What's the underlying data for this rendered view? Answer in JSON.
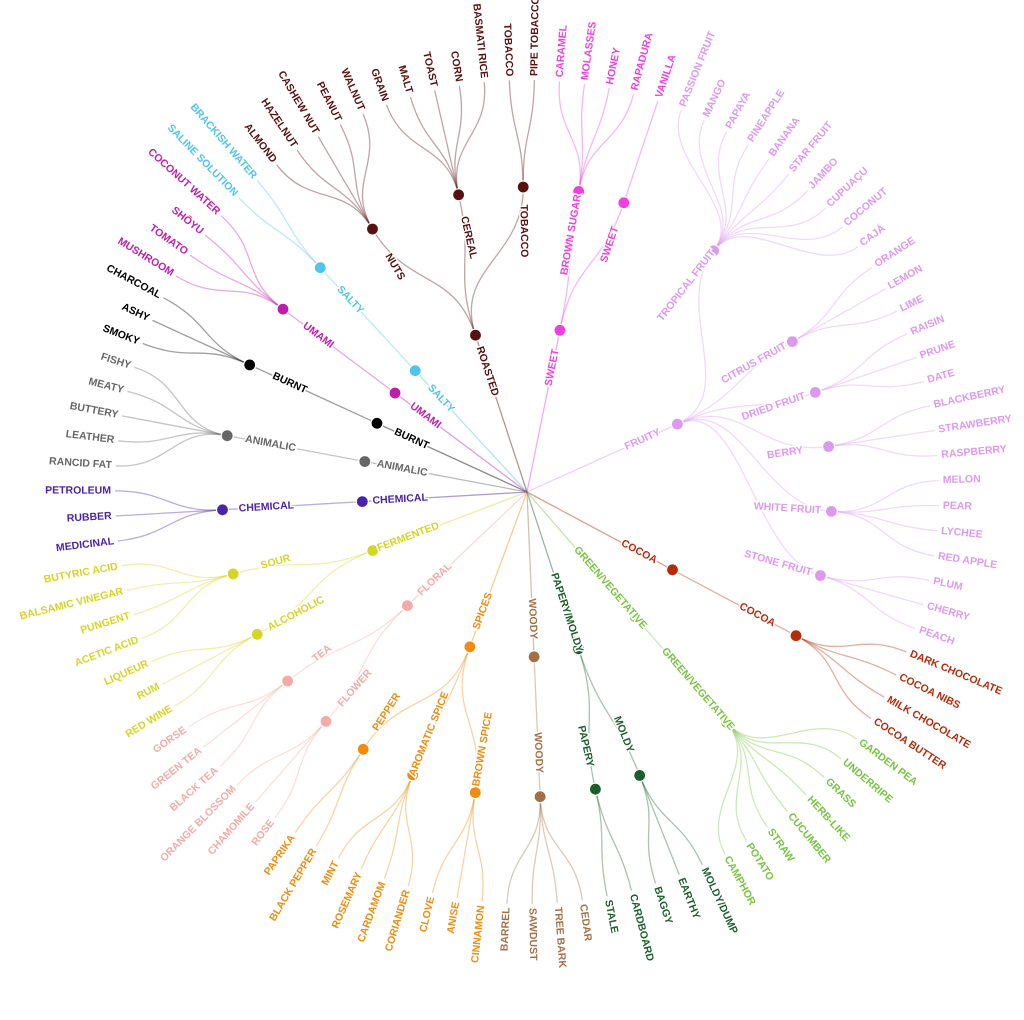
{
  "diagram": {
    "type": "radial-tree",
    "categories": [
      {
        "name": "FRUITY",
        "color": "#dd99ee",
        "groups": [
          {
            "name": "TROPICAL FRUIT",
            "leaves": [
              "PASSION FRUIT",
              "MANGO",
              "PAPAYA",
              "PINEAPPLE",
              "BANANA",
              "STAR FRUIT",
              "JAMBO",
              "CUPUAÇU",
              "COCONUT",
              "CAJÁ"
            ]
          },
          {
            "name": "CITRUS FRUIT",
            "leaves": [
              "ORANGE",
              "LEMON",
              "LIME"
            ]
          },
          {
            "name": "DRIED FRUIT",
            "leaves": [
              "RAISIN",
              "PRUNE",
              "DATE"
            ]
          },
          {
            "name": "BERRY",
            "leaves": [
              "BLACKBERRY",
              "STRAWBERRY",
              "RASPBERRY"
            ]
          },
          {
            "name": "WHITE FRUIT",
            "leaves": [
              "MELON",
              "PEAR",
              "LYCHEE",
              "RED APPLE"
            ]
          },
          {
            "name": "STONE FRUIT",
            "leaves": [
              "PLUM",
              "CHERRY",
              "PEACH"
            ]
          }
        ]
      },
      {
        "name": "COCOA",
        "color": "#b52b0a",
        "groups": [
          {
            "name": "COCOA",
            "leaves": [
              "DARK CHOCOLATE",
              "COCOA NIBS",
              "MILK CHOCOLATE",
              "COCOA BUTTER"
            ]
          }
        ]
      },
      {
        "name": "GREEN/VEGETATIVE",
        "color": "#77c440",
        "groups": [
          {
            "name": "GREEN/VEGETATIVE",
            "leaves": [
              "GARDEN PEA",
              "UNDERRIPE",
              "GRASS",
              "HERB-LIKE",
              "CUCUMBER",
              "STRAW",
              "POTATO",
              "CAMPHOR"
            ]
          }
        ]
      },
      {
        "name": "PAPERY/MOLDY",
        "color": "#1d5e2c",
        "groups": [
          {
            "name": "MOLDY",
            "leaves": [
              "MOLDY/DUMP",
              "EARTHY",
              "BAGGY"
            ]
          },
          {
            "name": "PAPERY",
            "leaves": [
              "CARDBOARD",
              "STALE"
            ]
          }
        ]
      },
      {
        "name": "WOODY",
        "color": "#a37045",
        "groups": [
          {
            "name": "WOODY",
            "leaves": [
              "CEDAR",
              "TREE BARK",
              "SAWDUST",
              "BARREL"
            ]
          }
        ]
      },
      {
        "name": "SPICES",
        "color": "#f08c10",
        "groups": [
          {
            "name": "BROWN SPICE",
            "leaves": [
              "CINNAMON",
              "ANISE",
              "CLOVE"
            ]
          },
          {
            "name": "AROMATIC SPICE",
            "leaves": [
              "CORIANDER",
              "CARDAMOM",
              "ROSEMARY",
              "MINT"
            ]
          },
          {
            "name": "PEPPER",
            "leaves": [
              "BLACK PEPPER",
              "PAPRIKA"
            ]
          }
        ]
      },
      {
        "name": "FLORAL",
        "color": "#f4aaa6",
        "groups": [
          {
            "name": "FLOWER",
            "leaves": [
              "ROSE",
              "CHAMOMILE",
              "ORANGE BLOSSOM"
            ]
          },
          {
            "name": "TEA",
            "leaves": [
              "BLACK TEA",
              "GREEN TEA",
              "GORSE"
            ]
          }
        ]
      },
      {
        "name": "FERMENTED",
        "color": "#d7d424",
        "groups": [
          {
            "name": "ALCOHOLIC",
            "leaves": [
              "RED WINE",
              "RUM",
              "LIQUEUR"
            ]
          },
          {
            "name": "SOUR",
            "leaves": [
              "ACETIC ACID",
              "PUNGENT",
              "BALSAMIC VINEGAR",
              "BUTYRIC ACID"
            ]
          }
        ]
      },
      {
        "name": "CHEMICAL",
        "color": "#4a24a8",
        "groups": [
          {
            "name": "CHEMICAL",
            "leaves": [
              "MEDICINAL",
              "RUBBER",
              "PETROLEUM"
            ]
          }
        ]
      },
      {
        "name": "ANIMALIC",
        "color": "#666666",
        "groups": [
          {
            "name": "ANIMALIC",
            "leaves": [
              "RANCID FAT",
              "LEATHER",
              "BUTTERY",
              "MEATY",
              "FISHY"
            ]
          }
        ]
      },
      {
        "name": "BURNT",
        "color": "#000000",
        "groups": [
          {
            "name": "BURNT",
            "leaves": [
              "SMOKY",
              "ASHY",
              "CHARCOAL"
            ]
          }
        ]
      },
      {
        "name": "UMAMI",
        "color": "#c01eaa",
        "groups": [
          {
            "name": "UMAMI",
            "leaves": [
              "MUSHROOM",
              "TOMATO",
              "SHŌYU",
              "COCONUT WATER"
            ]
          }
        ]
      },
      {
        "name": "SALTY",
        "color": "#50c4ec",
        "groups": [
          {
            "name": "SALTY",
            "leaves": [
              "SALINE SOLUTION",
              "BRACKISH WATER"
            ]
          }
        ]
      },
      {
        "name": "ROASTED",
        "color": "#581010",
        "groups": [
          {
            "name": "NUTS",
            "leaves": [
              "ALMOND",
              "HAZELNUT",
              "CASHEW NUT",
              "PEANUT",
              "WALNUT"
            ]
          },
          {
            "name": "CEREAL",
            "leaves": [
              "GRAIN",
              "MALT",
              "TOAST",
              "CORN",
              "BASMATI RICE"
            ]
          },
          {
            "name": "TOBACCO",
            "leaves": [
              "TOBACCO",
              "PIPE TOBACCO"
            ]
          }
        ]
      },
      {
        "name": "SWEET",
        "color": "#f03ee0",
        "groups": [
          {
            "name": "BROWN SUGAR",
            "leaves": [
              "CARAMEL",
              "MOLASSES",
              "HONEY",
              "RAPADURA"
            ]
          },
          {
            "name": "SWEET",
            "leaves": [
              "VANILLA"
            ]
          }
        ]
      }
    ]
  }
}
